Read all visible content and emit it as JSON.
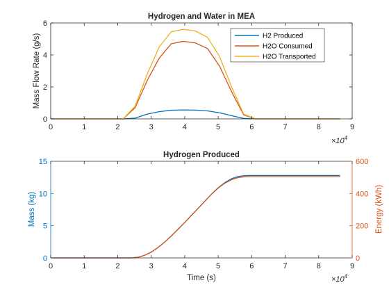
{
  "chart_data": [
    {
      "type": "line",
      "title": "Hydrogen and Water in MEA",
      "xlabel": "",
      "ylabel": "Mass Flow Rate (g/s)",
      "xlim": [
        0,
        90000
      ],
      "ylim": [
        0,
        6
      ],
      "x_exponent_label": "×10",
      "x_exponent": "4",
      "x_ticks": [
        0,
        10000,
        20000,
        30000,
        40000,
        50000,
        60000,
        70000,
        80000,
        90000
      ],
      "x_tick_labels": [
        "0",
        "1",
        "2",
        "3",
        "4",
        "5",
        "6",
        "7",
        "8",
        "9"
      ],
      "y_ticks": [
        0,
        2,
        4,
        6
      ],
      "y_tick_labels": [
        "0",
        "2",
        "4",
        "6"
      ],
      "grid": false,
      "legend_position": "top-right",
      "series": [
        {
          "name": "H2 Produced",
          "color": "#0072BD",
          "x": [
            0,
            21600,
            25200,
            28800,
            32400,
            36000,
            39600,
            43200,
            46800,
            50400,
            54000,
            57600,
            61200,
            64800,
            86400
          ],
          "y": [
            0,
            0,
            0.05,
            0.3,
            0.45,
            0.54,
            0.56,
            0.55,
            0.5,
            0.38,
            0.2,
            0.03,
            0,
            0,
            0
          ]
        },
        {
          "name": "H2O Consumed",
          "color": "#D95319",
          "x": [
            0,
            21600,
            25200,
            28800,
            32400,
            36000,
            39600,
            43200,
            46800,
            50400,
            54000,
            57600,
            61200,
            64800,
            86400
          ],
          "y": [
            0,
            0,
            0.7,
            2.4,
            3.8,
            4.7,
            4.85,
            4.75,
            4.4,
            3.3,
            1.7,
            0.25,
            0,
            0,
            0
          ]
        },
        {
          "name": "H2O Transported",
          "color": "#EDB120",
          "x": [
            0,
            21600,
            25200,
            28800,
            32400,
            36000,
            39600,
            43200,
            46800,
            50400,
            54000,
            57600,
            61200,
            64800,
            86400
          ],
          "y": [
            0,
            0,
            0.8,
            2.8,
            4.5,
            5.45,
            5.6,
            5.5,
            5.1,
            3.9,
            2.0,
            0.3,
            0,
            0,
            0
          ]
        }
      ]
    },
    {
      "type": "line",
      "title": "Hydrogen Produced",
      "xlabel": "Time (s)",
      "ylabel": "Mass (kg)",
      "ylabel_right": "Energy (kWh)",
      "xlim": [
        0,
        90000
      ],
      "ylim": [
        0,
        15
      ],
      "ylim_right": [
        0,
        600
      ],
      "x_exponent_label": "×10",
      "x_exponent": "4",
      "x_ticks": [
        0,
        10000,
        20000,
        30000,
        40000,
        50000,
        60000,
        70000,
        80000,
        90000
      ],
      "x_tick_labels": [
        "0",
        "1",
        "2",
        "3",
        "4",
        "5",
        "6",
        "7",
        "8",
        "9"
      ],
      "y_ticks": [
        0,
        5,
        10,
        15
      ],
      "y_tick_labels": [
        "0",
        "5",
        "10",
        "15"
      ],
      "y_ticks_right": [
        0,
        200,
        400,
        600
      ],
      "y_tick_labels_right": [
        "0",
        "200",
        "400",
        "600"
      ],
      "left_axis_color": "#0072BD",
      "right_axis_color": "#D95319",
      "grid": false,
      "series": [
        {
          "axis": "left",
          "color": "#0072BD",
          "x": [
            0,
            22000,
            24000,
            26000,
            28000,
            30000,
            32000,
            34000,
            36000,
            38000,
            40000,
            42000,
            44000,
            46000,
            48000,
            50000,
            52000,
            54000,
            56000,
            58000,
            60000,
            62000,
            86400
          ],
          "y": [
            0,
            0,
            0,
            0.1,
            0.4,
            0.9,
            1.6,
            2.45,
            3.4,
            4.45,
            5.5,
            6.6,
            7.7,
            8.8,
            9.9,
            10.9,
            11.7,
            12.3,
            12.65,
            12.78,
            12.8,
            12.8,
            12.8
          ]
        },
        {
          "axis": "right",
          "color": "#D95319",
          "x": [
            0,
            22000,
            24000,
            26000,
            28000,
            30000,
            32000,
            34000,
            36000,
            38000,
            40000,
            42000,
            44000,
            46000,
            48000,
            50000,
            52000,
            54000,
            56000,
            58000,
            60000,
            62000,
            86400
          ],
          "y": [
            0,
            0,
            0,
            4,
            16,
            36,
            64,
            98,
            136,
            178,
            220,
            264,
            308,
            352,
            396,
            434,
            464,
            486,
            499,
            504,
            505,
            505,
            505
          ]
        }
      ]
    }
  ]
}
